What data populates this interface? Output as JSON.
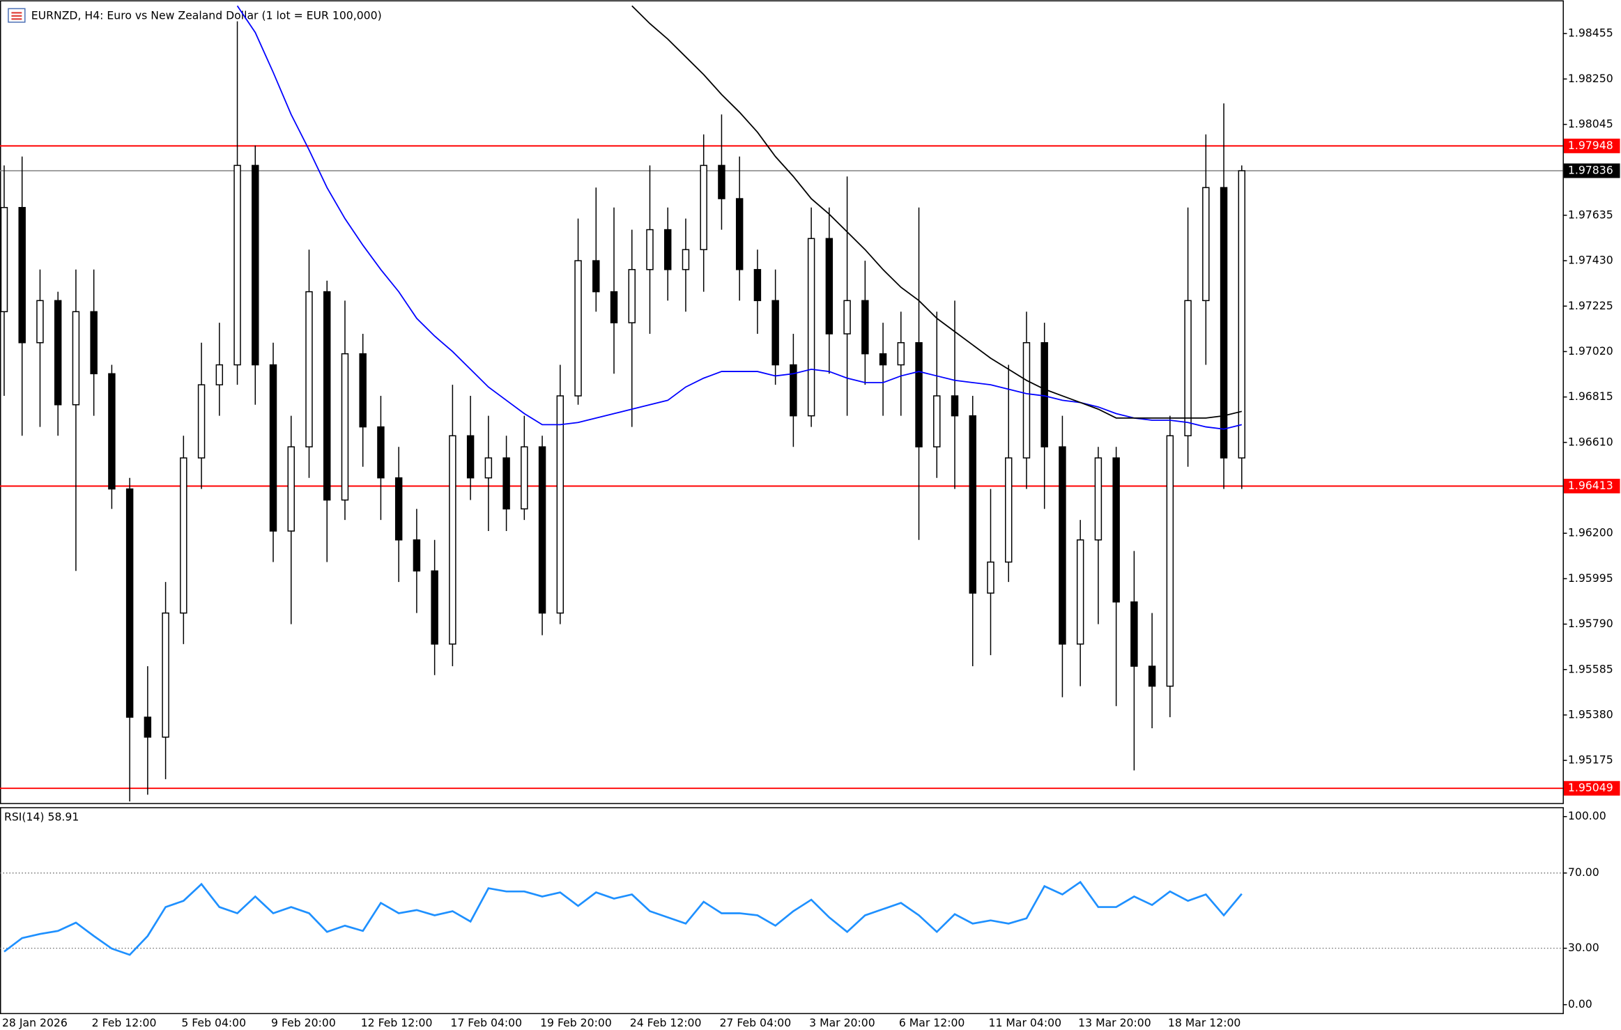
{
  "chart_data": [
    {
      "type": "candlestick",
      "title": "EURNZD, H4:  Euro vs New Zealand Dollar (1 lot = EUR 100,000)",
      "categories": [
        "28 Jan 2026",
        null,
        null,
        null,
        null,
        "2 Feb 12:00",
        null,
        null,
        null,
        null,
        "5 Feb 04:00",
        null,
        null,
        null,
        null,
        "9 Feb 20:00",
        null,
        null,
        null,
        null,
        "12 Feb 12:00",
        null,
        null,
        null,
        null,
        "17 Feb 04:00",
        null,
        null,
        null,
        null,
        "19 Feb 20:00",
        null,
        null,
        null,
        null,
        "24 Feb 12:00",
        null,
        null,
        null,
        null,
        "27 Feb 04:00",
        null,
        null,
        null,
        null,
        "3 Mar 20:00",
        null,
        null,
        null,
        null,
        "6 Mar 12:00",
        null,
        null,
        null,
        null,
        "11 Mar 04:00",
        null,
        null,
        null,
        null,
        "13 Mar 20:00",
        null,
        null,
        null,
        null,
        "18 Mar 12:00",
        null,
        null,
        null,
        null
      ],
      "open": [
        1.972,
        1.9767,
        1.9706,
        1.9725,
        1.9678,
        1.972,
        1.9692,
        1.964,
        1.9537,
        1.9528,
        1.9584,
        1.9654,
        1.9687,
        1.9696,
        1.9786,
        1.9696,
        1.9621,
        1.9659,
        1.9729,
        1.9635,
        1.9701,
        1.9668,
        1.9645,
        1.9617,
        1.9603,
        1.957,
        1.9664,
        1.9645,
        1.9654,
        1.9631,
        1.9659,
        1.9584,
        1.9682,
        1.9743,
        1.9729,
        1.9715,
        1.9739,
        1.9757,
        1.9739,
        1.9748,
        1.9786,
        1.9771,
        1.9739,
        1.9725,
        1.9696,
        1.9673,
        1.9753,
        1.971,
        1.9725,
        1.9701,
        1.9696,
        1.9706,
        1.9659,
        1.9682,
        1.9673,
        1.9593,
        1.9607,
        1.9654,
        1.9706,
        1.9659,
        1.957,
        1.9617,
        1.9654,
        1.9589,
        1.956,
        1.9551,
        1.9664,
        1.9725,
        1.9776,
        1.9654
      ],
      "high": [
        1.9786,
        1.979,
        1.9739,
        1.9729,
        1.9739,
        1.9739,
        1.9696,
        1.9645,
        1.956,
        1.9598,
        1.9664,
        1.9706,
        1.9715,
        1.9851,
        1.9795,
        1.9706,
        1.9673,
        1.9748,
        1.9734,
        1.9725,
        1.971,
        1.9682,
        1.9659,
        1.9631,
        1.9617,
        1.9687,
        1.9682,
        1.9673,
        1.9664,
        1.9673,
        1.9664,
        1.9696,
        1.9762,
        1.9776,
        1.9767,
        1.9757,
        1.9786,
        1.9767,
        1.9762,
        1.98,
        1.9809,
        1.979,
        1.9748,
        1.9739,
        1.971,
        1.9767,
        1.9767,
        1.9781,
        1.9743,
        1.9715,
        1.972,
        1.9767,
        1.972,
        1.9725,
        1.9682,
        1.964,
        1.9696,
        1.972,
        1.9715,
        1.9673,
        1.9626,
        1.9659,
        1.9659,
        1.9612,
        1.9584,
        1.9673,
        1.9767,
        1.98,
        1.9814,
        1.9786
      ],
      "low": [
        1.9682,
        1.9664,
        1.9668,
        1.9664,
        1.9603,
        1.9673,
        1.9631,
        1.9499,
        1.9502,
        1.9509,
        1.957,
        1.964,
        1.9673,
        1.9687,
        1.9678,
        1.9607,
        1.9579,
        1.9645,
        1.9607,
        1.9626,
        1.965,
        1.9626,
        1.9598,
        1.9584,
        1.9556,
        1.956,
        1.9635,
        1.9621,
        1.9621,
        1.9626,
        1.9574,
        1.9579,
        1.9678,
        1.972,
        1.9692,
        1.9668,
        1.971,
        1.9725,
        1.972,
        1.9729,
        1.9757,
        1.9725,
        1.971,
        1.9687,
        1.9659,
        1.9668,
        1.9692,
        1.9673,
        1.9687,
        1.9673,
        1.9673,
        1.9617,
        1.9645,
        1.964,
        1.956,
        1.9565,
        1.9598,
        1.964,
        1.9631,
        1.9546,
        1.9551,
        1.9579,
        1.9542,
        1.9513,
        1.9532,
        1.9537,
        1.965,
        1.9696,
        1.964,
        1.964
      ],
      "close": [
        1.9767,
        1.9706,
        1.9725,
        1.9678,
        1.972,
        1.9692,
        1.964,
        1.9537,
        1.9528,
        1.9584,
        1.9654,
        1.9687,
        1.9696,
        1.9786,
        1.9696,
        1.9621,
        1.9659,
        1.9729,
        1.9635,
        1.9701,
        1.9668,
        1.9645,
        1.9617,
        1.9603,
        1.957,
        1.9664,
        1.9645,
        1.9654,
        1.9631,
        1.9659,
        1.9584,
        1.9682,
        1.9743,
        1.9729,
        1.9715,
        1.9739,
        1.9757,
        1.9739,
        1.9748,
        1.9786,
        1.9771,
        1.9739,
        1.9725,
        1.9696,
        1.9673,
        1.9753,
        1.971,
        1.9725,
        1.9701,
        1.9696,
        1.9706,
        1.9659,
        1.9682,
        1.9673,
        1.9593,
        1.9607,
        1.9654,
        1.9706,
        1.9659,
        1.957,
        1.9617,
        1.9654,
        1.9589,
        1.956,
        1.9551,
        1.9664,
        1.9725,
        1.9776,
        1.9654,
        1.97836
      ],
      "series": [
        {
          "color": "#0000ff",
          "values": [
            null,
            null,
            null,
            null,
            null,
            null,
            null,
            null,
            null,
            null,
            null,
            null,
            null,
            1.9858,
            1.9846,
            1.9828,
            1.9809,
            1.9793,
            1.9776,
            1.9762,
            1.975,
            1.9739,
            1.9729,
            1.9717,
            1.9709,
            1.9702,
            1.9694,
            1.9686,
            1.968,
            1.9674,
            1.9669,
            1.9669,
            1.967,
            1.9672,
            1.9674,
            1.9676,
            1.9678,
            1.968,
            1.9686,
            1.969,
            1.9693,
            1.9693,
            1.9693,
            1.9691,
            1.9692,
            1.9694,
            1.9693,
            1.969,
            1.9688,
            1.9688,
            1.9691,
            1.9693,
            1.9691,
            1.9689,
            1.9688,
            1.9687,
            1.9685,
            1.9683,
            1.9682,
            1.968,
            1.9679,
            1.9677,
            1.9674,
            1.9672,
            1.9671,
            1.9671,
            1.967,
            1.9668,
            1.9667,
            1.9669
          ]
        },
        {
          "color": "#000000",
          "values": [
            null,
            null,
            null,
            null,
            null,
            null,
            null,
            null,
            null,
            null,
            null,
            null,
            null,
            null,
            null,
            null,
            null,
            null,
            null,
            null,
            null,
            null,
            null,
            null,
            null,
            null,
            null,
            null,
            null,
            null,
            null,
            null,
            null,
            null,
            null,
            1.9858,
            1.985,
            1.9843,
            1.9835,
            1.9827,
            1.9818,
            1.981,
            1.9801,
            1.979,
            1.9781,
            1.9771,
            1.9764,
            1.9756,
            1.9748,
            1.9739,
            1.9731,
            1.9725,
            1.9717,
            1.9711,
            1.9705,
            1.9699,
            1.9694,
            1.9689,
            1.9685,
            1.9682,
            1.9679,
            1.9676,
            1.9672,
            1.9672,
            1.9672,
            1.9672,
            1.9672,
            1.9672,
            1.9673,
            1.9675
          ]
        }
      ],
      "levels": [
        {
          "value": 1.97948,
          "color": "#ff0000"
        },
        {
          "value": 1.96413,
          "color": "#ff0000"
        },
        {
          "value": 1.95049,
          "color": "#ff0000"
        }
      ],
      "last_price": {
        "value": 1.97836,
        "color": "#808080"
      },
      "ylim": [
        1.94978,
        1.98605
      ],
      "yticks": [
        1.98455,
        {
          "value": 1.9825,
          "label": "1.98250"
        },
        1.98045,
        1.97635,
        {
          "value": 1.9743,
          "label": "1.97430"
        },
        1.97225,
        {
          "value": 1.9702,
          "label": "1.97020"
        },
        1.96815,
        {
          "value": 1.9661,
          "label": "1.96610"
        },
        {
          "value": 1.962,
          "label": "1.96200"
        },
        1.95995,
        {
          "value": 1.9579,
          "label": "1.95790"
        },
        1.95585,
        {
          "value": 1.9538,
          "label": "1.95380"
        },
        1.95175
      ]
    },
    {
      "type": "line",
      "title": "RSI(14) 58.91",
      "color": "#1e90ff",
      "values": [
        28.2,
        35.4,
        37.6,
        39.2,
        43.6,
        36.5,
        29.8,
        26.5,
        36.5,
        51.9,
        55.2,
        64.1,
        51.9,
        48.6,
        57.5,
        48.6,
        51.9,
        48.6,
        38.7,
        42.0,
        39.2,
        54.1,
        48.6,
        50.3,
        47.5,
        49.7,
        44.2,
        61.9,
        60.2,
        60.2,
        57.5,
        59.7,
        52.5,
        59.7,
        56.4,
        58.6,
        49.7,
        46.4,
        43.1,
        54.7,
        48.6,
        48.6,
        47.5,
        42.0,
        49.7,
        55.8,
        46.4,
        38.7,
        47.5,
        50.8,
        54.1,
        47.5,
        38.7,
        48.1,
        43.1,
        44.8,
        43.1,
        45.9,
        63.0,
        58.6,
        65.2,
        51.9,
        51.9,
        57.5,
        53.0,
        60.2,
        55.2,
        58.6,
        47.5,
        58.91
      ],
      "levels": [
        70,
        30
      ],
      "ylim": [
        -5,
        105
      ],
      "yticks": [
        {
          "value": 100,
          "label": "100.00"
        },
        {
          "value": 70,
          "label": "70.00"
        },
        {
          "value": 30,
          "label": "30.00"
        },
        {
          "value": 0,
          "label": "0.00"
        }
      ]
    }
  ]
}
